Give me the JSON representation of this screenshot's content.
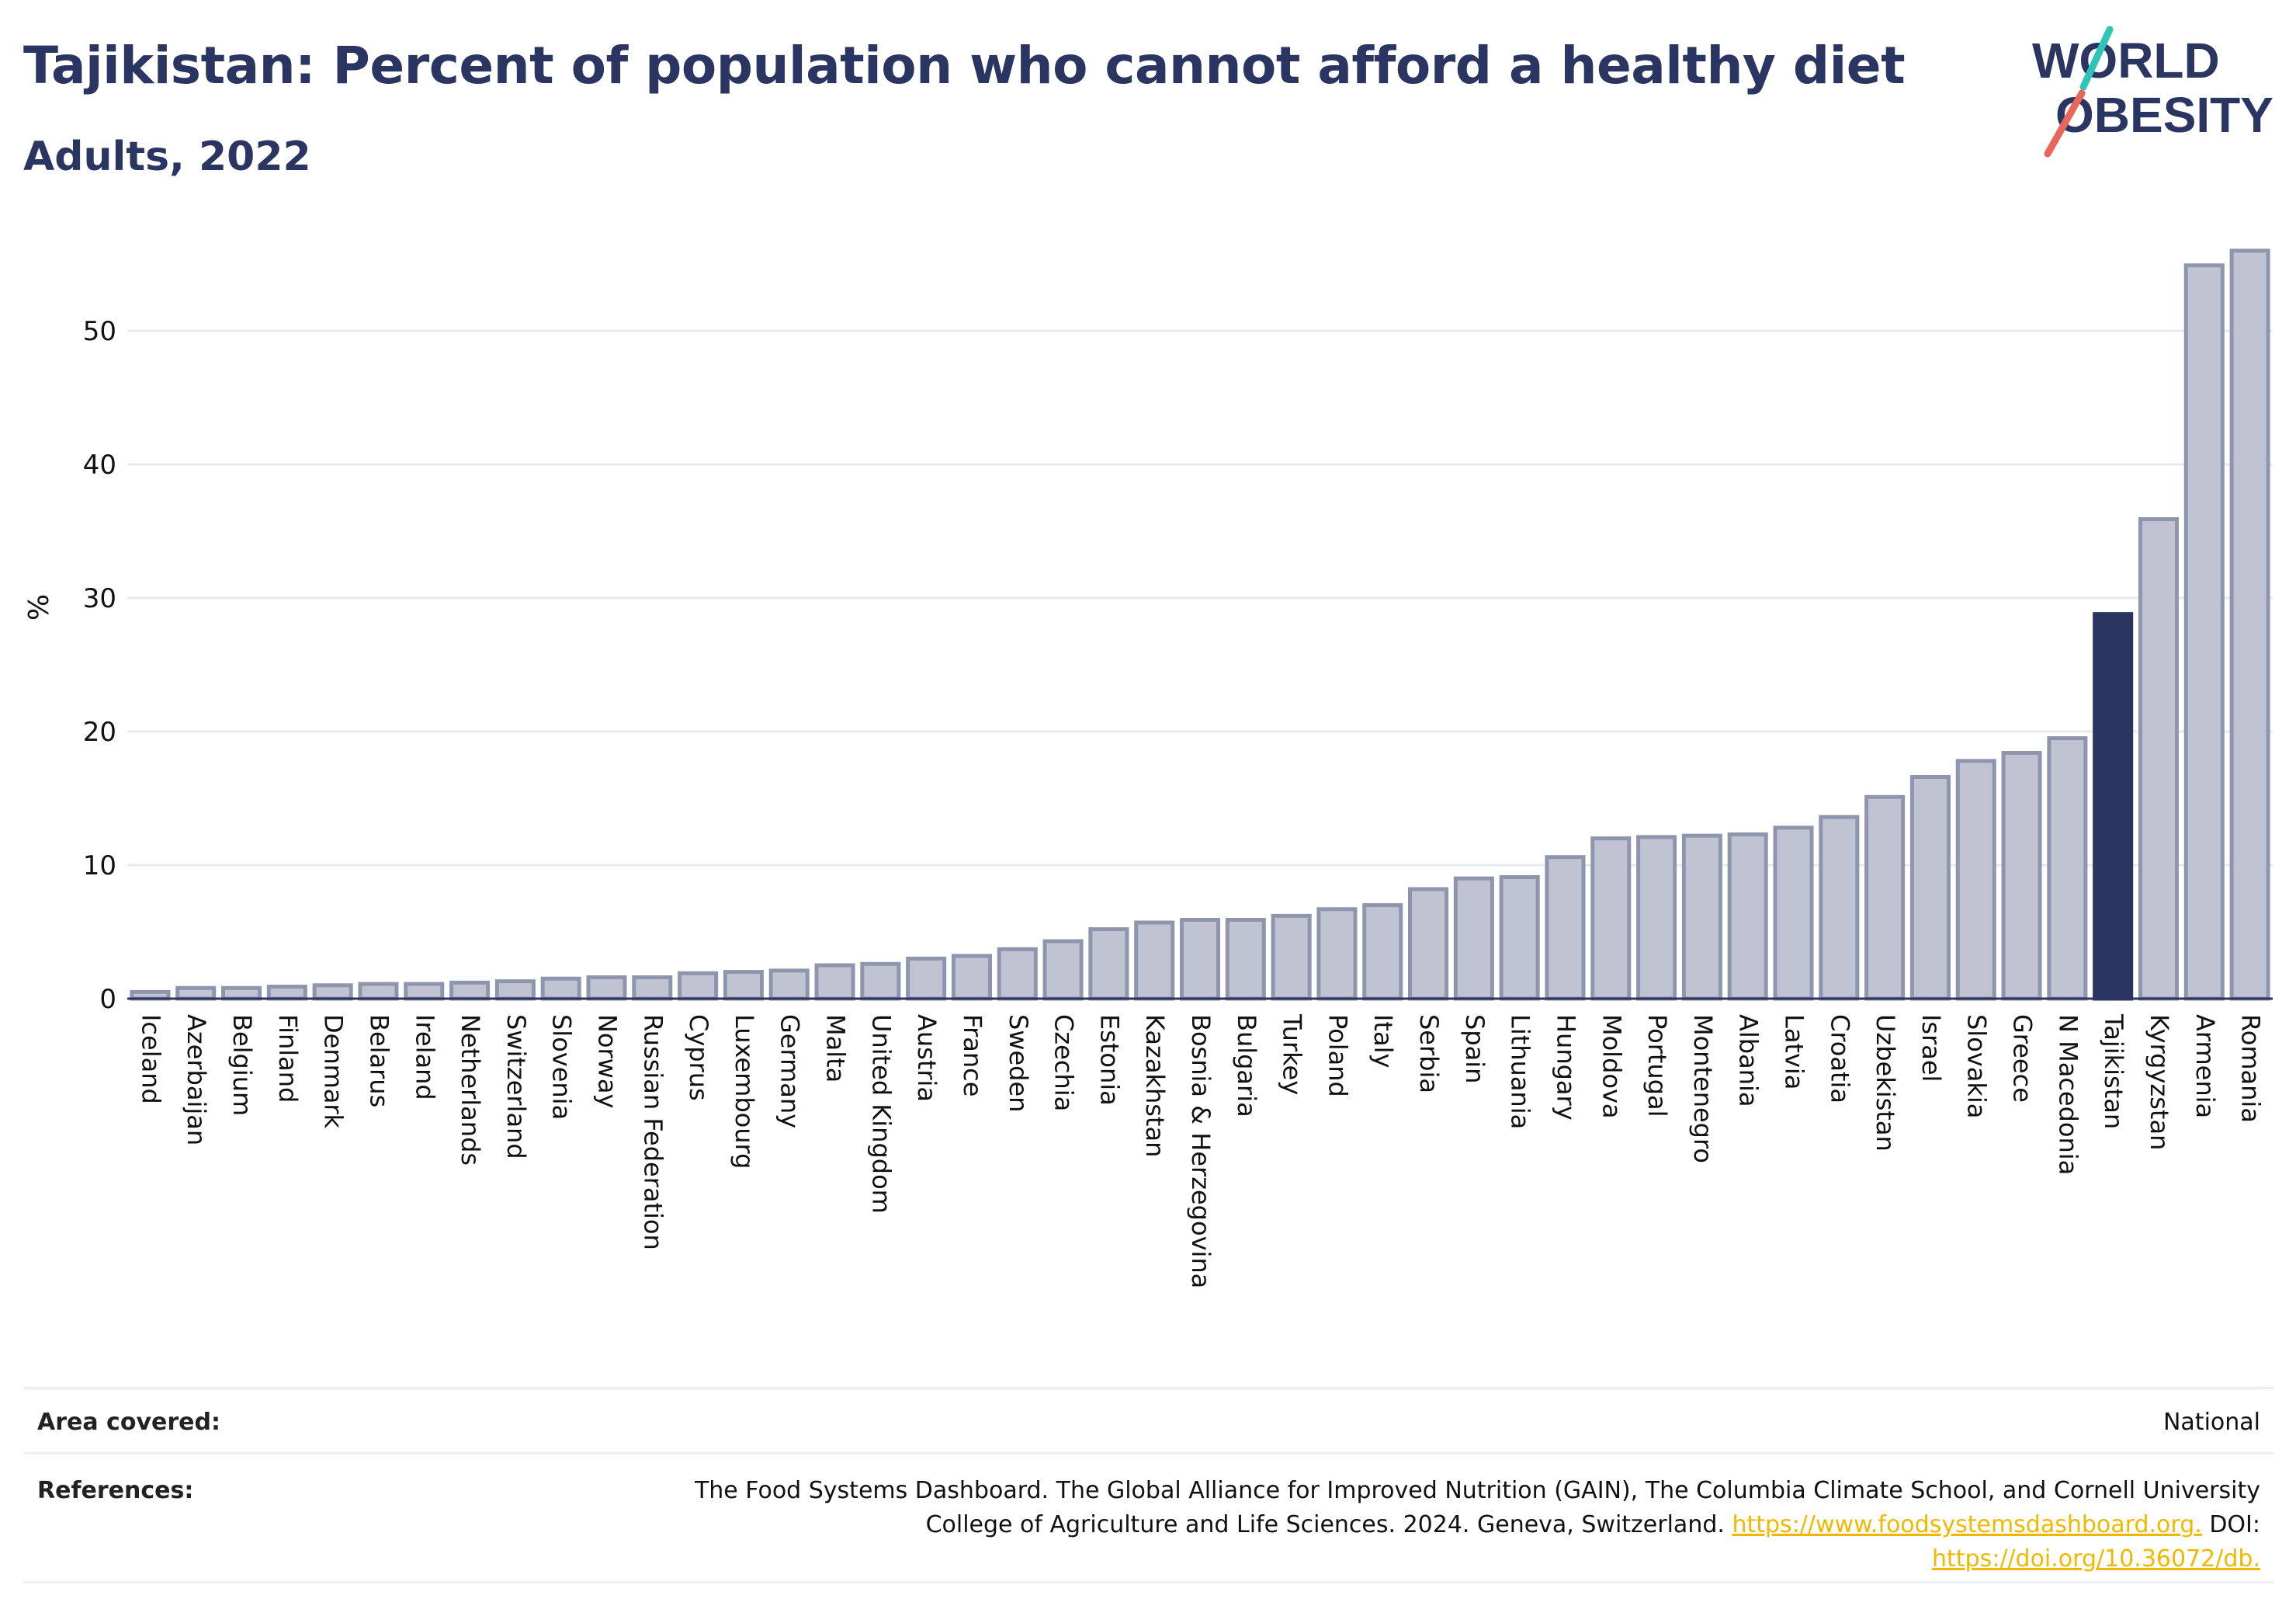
{
  "header": {
    "title": "Tajikistan: Percent of population who cannot afford a healthy diet",
    "subtitle": "Adults, 2022"
  },
  "logo": {
    "line1": "WORLD",
    "line2": "OBESITY",
    "accent_teal": "#2ec4b6",
    "accent_red": "#e8675a"
  },
  "colors": {
    "bar": "#bfc3d2",
    "bar_stroke": "#8f95ad",
    "highlight": "#2b3561",
    "grid": "#e7e9ef"
  },
  "chart_data": {
    "type": "bar",
    "ylabel": "%",
    "ylim": [
      0,
      57
    ],
    "yticks": [
      0,
      10,
      20,
      30,
      40,
      50
    ],
    "highlight": "Tajikistan",
    "categories": [
      "Iceland",
      "Azerbaijan",
      "Belgium",
      "Finland",
      "Denmark",
      "Belarus",
      "Ireland",
      "Netherlands",
      "Switzerland",
      "Slovenia",
      "Norway",
      "Russian Federation",
      "Cyprus",
      "Luxembourg",
      "Germany",
      "Malta",
      "United Kingdom",
      "Austria",
      "France",
      "Sweden",
      "Czechia",
      "Estonia",
      "Kazakhstan",
      "Bosnia & Herzegovina",
      "Bulgaria",
      "Turkey",
      "Poland",
      "Italy",
      "Serbia",
      "Spain",
      "Lithuania",
      "Hungary",
      "Moldova",
      "Portugal",
      "Montenegro",
      "Albania",
      "Latvia",
      "Croatia",
      "Uzbekistan",
      "Israel",
      "Slovakia",
      "Greece",
      "N Macedonia",
      "Tajikistan",
      "Kyrgyzstan",
      "Armenia",
      "Romania"
    ],
    "values": [
      0.5,
      0.8,
      0.8,
      0.9,
      1.0,
      1.1,
      1.1,
      1.2,
      1.3,
      1.5,
      1.6,
      1.6,
      1.9,
      2.0,
      2.1,
      2.5,
      2.6,
      3.0,
      3.2,
      3.7,
      4.3,
      5.2,
      5.7,
      5.9,
      5.9,
      6.2,
      6.7,
      7.0,
      8.2,
      9.0,
      9.1,
      10.6,
      12.0,
      12.1,
      12.2,
      12.3,
      12.8,
      13.6,
      15.1,
      16.6,
      17.8,
      18.4,
      19.5,
      28.8,
      35.9,
      54.9,
      56.0
    ]
  },
  "footer": {
    "area_label": "Area covered:",
    "area_value": "National",
    "refs_label": "References:",
    "refs_line1": "The Food Systems Dashboard. The Global Alliance for Improved Nutrition (GAIN), The Columbia Climate School, and Cornell University",
    "refs_line2": "College of Agriculture and Life Sciences. 2024. Geneva, Switzerland.",
    "refs_link1": "https://www.foodsystemsdashboard.org.",
    "refs_doi": "DOI:",
    "refs_link2": "https://doi.org/10.36072/db."
  }
}
